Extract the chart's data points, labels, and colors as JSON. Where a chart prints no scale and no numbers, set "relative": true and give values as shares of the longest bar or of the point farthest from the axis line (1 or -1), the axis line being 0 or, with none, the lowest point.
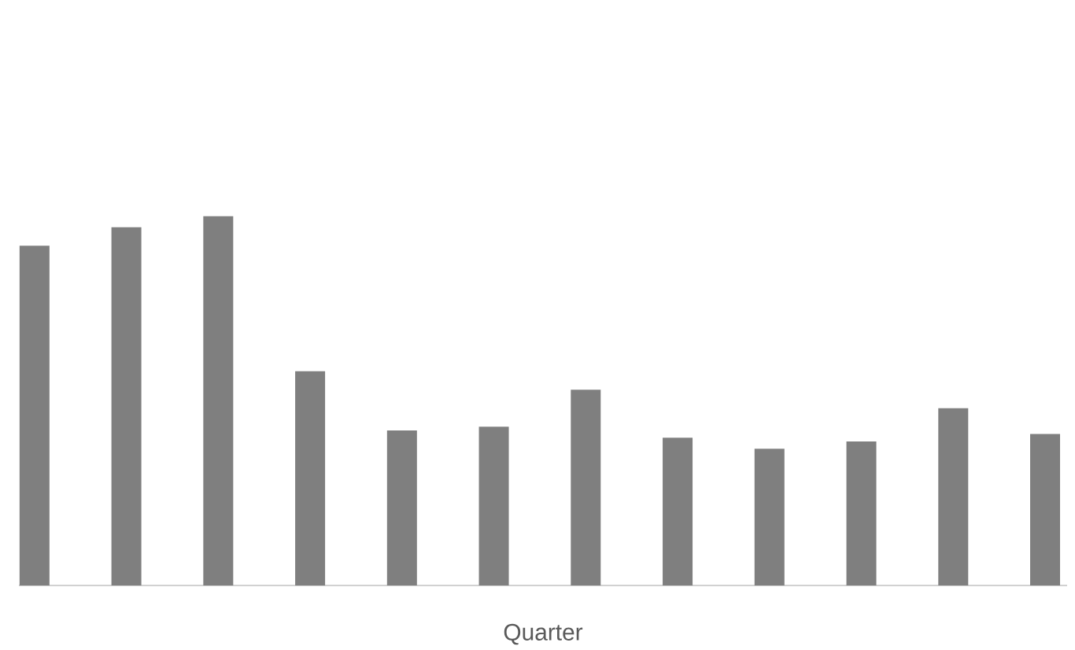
{
  "chart_data": {
    "type": "bar",
    "xlabel": "Quarter",
    "relative": true,
    "color": "#7f7f7f",
    "categories": [
      null,
      null,
      null,
      null,
      null,
      null,
      null,
      null,
      null,
      null,
      null,
      null
    ],
    "values": [
      0.92,
      0.97,
      1,
      0.58,
      0.42,
      0.43,
      0.53,
      0.4,
      0.37,
      0.39,
      0.48,
      0.41
    ]
  }
}
